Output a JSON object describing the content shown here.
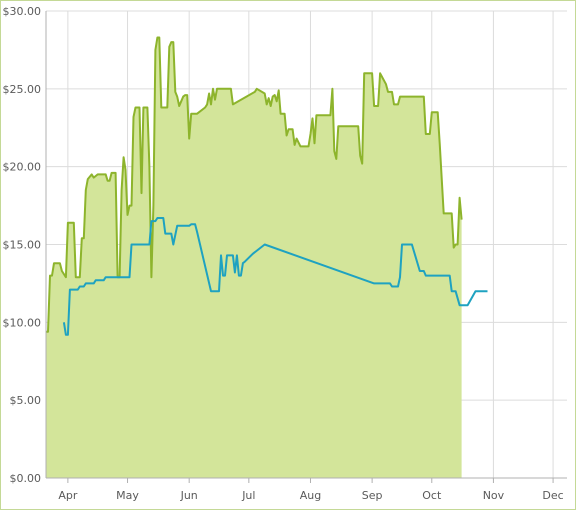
{
  "chart_data": {
    "type": "area",
    "y_tick_labels": [
      "$0.00",
      "$5.00",
      "$10.00",
      "$15.00",
      "$20.00",
      "$25.00",
      "$30.00"
    ],
    "ylim": [
      0,
      30
    ],
    "x_tick_labels": [
      "Apr",
      "May",
      "Jun",
      "Jul",
      "Aug",
      "Sep",
      "Oct",
      "Nov",
      "Dec"
    ],
    "x_tick_days": [
      91,
      121,
      152,
      182,
      213,
      244,
      274,
      305,
      335
    ],
    "xlim": [
      80,
      342
    ],
    "grid": true,
    "legend": "none",
    "series": [
      {
        "style": "area",
        "line_color": "#8db42c",
        "fill_color": "#d3e59a",
        "points": [
          [
            80,
            9.4
          ],
          [
            81,
            9.4
          ],
          [
            82,
            13.0
          ],
          [
            83,
            13.0
          ],
          [
            84,
            13.8
          ],
          [
            87,
            13.8
          ],
          [
            88,
            13.3
          ],
          [
            90,
            12.9
          ],
          [
            91,
            16.4
          ],
          [
            94,
            16.4
          ],
          [
            95,
            12.9
          ],
          [
            97,
            12.9
          ],
          [
            98,
            15.4
          ],
          [
            99,
            15.4
          ],
          [
            100,
            18.5
          ],
          [
            101,
            19.2
          ],
          [
            103,
            19.5
          ],
          [
            104,
            19.3
          ],
          [
            106,
            19.5
          ],
          [
            110,
            19.5
          ],
          [
            111,
            19.1
          ],
          [
            112,
            19.1
          ],
          [
            113,
            19.6
          ],
          [
            115,
            19.6
          ],
          [
            116,
            12.9
          ],
          [
            117,
            12.9
          ],
          [
            118,
            18.5
          ],
          [
            119,
            20.6
          ],
          [
            120,
            19.8
          ],
          [
            121,
            16.9
          ],
          [
            122,
            17.5
          ],
          [
            123,
            17.5
          ],
          [
            124,
            23.2
          ],
          [
            125,
            23.8
          ],
          [
            127,
            23.8
          ],
          [
            128,
            18.3
          ],
          [
            129,
            23.8
          ],
          [
            131,
            23.8
          ],
          [
            132,
            20.0
          ],
          [
            133,
            12.9
          ],
          [
            134,
            17.5
          ],
          [
            135,
            27.5
          ],
          [
            136,
            28.3
          ],
          [
            137,
            28.3
          ],
          [
            138,
            23.8
          ],
          [
            141,
            23.8
          ],
          [
            142,
            27.7
          ],
          [
            143,
            28.0
          ],
          [
            144,
            28.0
          ],
          [
            145,
            24.8
          ],
          [
            146,
            24.5
          ],
          [
            147,
            23.9
          ],
          [
            148,
            24.2
          ],
          [
            149,
            24.5
          ],
          [
            150,
            24.6
          ],
          [
            151,
            24.6
          ],
          [
            152,
            21.8
          ],
          [
            153,
            23.4
          ],
          [
            156,
            23.4
          ],
          [
            160,
            23.8
          ],
          [
            161,
            24.0
          ],
          [
            162,
            24.7
          ],
          [
            163,
            24.0
          ],
          [
            164,
            25.0
          ],
          [
            165,
            24.3
          ],
          [
            166,
            25.0
          ],
          [
            173,
            25.0
          ],
          [
            174,
            24.0
          ],
          [
            185,
            24.8
          ],
          [
            186,
            25.0
          ],
          [
            190,
            24.7
          ],
          [
            191,
            24.0
          ],
          [
            192,
            24.4
          ],
          [
            193,
            23.9
          ],
          [
            194,
            24.5
          ],
          [
            195,
            24.6
          ],
          [
            196,
            24.2
          ],
          [
            197,
            24.9
          ],
          [
            198,
            23.4
          ],
          [
            200,
            23.4
          ],
          [
            201,
            22.0
          ],
          [
            202,
            22.4
          ],
          [
            204,
            22.4
          ],
          [
            205,
            21.4
          ],
          [
            206,
            21.8
          ],
          [
            208,
            21.3
          ],
          [
            212,
            21.3
          ],
          [
            213,
            22.1
          ],
          [
            214,
            23.1
          ],
          [
            215,
            21.5
          ],
          [
            216,
            23.3
          ],
          [
            223,
            23.3
          ],
          [
            224,
            25.0
          ],
          [
            225,
            21.0
          ],
          [
            226,
            20.5
          ],
          [
            227,
            22.6
          ],
          [
            230,
            22.6
          ],
          [
            237,
            22.6
          ],
          [
            238,
            20.7
          ],
          [
            239,
            20.2
          ],
          [
            240,
            26.0
          ],
          [
            244,
            26.0
          ],
          [
            245,
            23.9
          ],
          [
            247,
            23.9
          ],
          [
            248,
            26.0
          ],
          [
            251,
            25.3
          ],
          [
            252,
            24.8
          ],
          [
            254,
            24.8
          ],
          [
            255,
            24.0
          ],
          [
            257,
            24.0
          ],
          [
            258,
            24.5
          ],
          [
            270,
            24.5
          ],
          [
            271,
            22.1
          ],
          [
            273,
            22.1
          ],
          [
            274,
            23.5
          ],
          [
            277,
            23.5
          ],
          [
            278,
            21.5
          ],
          [
            280,
            17.0
          ],
          [
            284,
            17.0
          ],
          [
            285,
            14.8
          ],
          [
            286,
            15.0
          ],
          [
            287,
            15.0
          ],
          [
            288,
            18.0
          ],
          [
            289,
            16.6
          ]
        ]
      },
      {
        "style": "line",
        "line_color": "#1ea2c1",
        "points": [
          [
            89,
            10.0
          ],
          [
            90,
            9.2
          ],
          [
            91,
            9.2
          ],
          [
            92,
            12.1
          ],
          [
            96,
            12.1
          ],
          [
            97,
            12.3
          ],
          [
            99,
            12.3
          ],
          [
            100,
            12.5
          ],
          [
            104,
            12.5
          ],
          [
            105,
            12.7
          ],
          [
            109,
            12.7
          ],
          [
            110,
            12.9
          ],
          [
            117,
            12.9
          ],
          [
            118,
            12.9
          ],
          [
            122,
            12.9
          ],
          [
            123,
            15.0
          ],
          [
            132,
            15.0
          ],
          [
            133,
            16.5
          ],
          [
            135,
            16.5
          ],
          [
            136,
            16.7
          ],
          [
            139,
            16.7
          ],
          [
            140,
            15.7
          ],
          [
            143,
            15.7
          ],
          [
            144,
            15.0
          ],
          [
            146,
            16.2
          ],
          [
            152,
            16.2
          ],
          [
            153,
            16.3
          ],
          [
            155,
            16.3
          ],
          [
            156,
            15.8
          ],
          [
            163,
            12.0
          ],
          [
            167,
            12.0
          ],
          [
            168,
            14.3
          ],
          [
            169,
            13.0
          ],
          [
            170,
            13.0
          ],
          [
            171,
            14.3
          ],
          [
            174,
            14.3
          ],
          [
            175,
            13.2
          ],
          [
            176,
            14.3
          ],
          [
            177,
            13.0
          ],
          [
            178,
            13.0
          ],
          [
            179,
            13.8
          ],
          [
            180,
            13.9
          ],
          [
            184,
            14.4
          ],
          [
            190,
            15.0
          ],
          [
            245,
            12.5
          ],
          [
            253,
            12.5
          ],
          [
            254,
            12.3
          ],
          [
            257,
            12.3
          ],
          [
            258,
            12.9
          ],
          [
            259,
            15.0
          ],
          [
            264,
            15.0
          ],
          [
            268,
            13.3
          ],
          [
            270,
            13.3
          ],
          [
            271,
            13.0
          ],
          [
            283,
            13.0
          ],
          [
            284,
            12.0
          ],
          [
            286,
            12.0
          ],
          [
            288,
            11.1
          ],
          [
            292,
            11.1
          ],
          [
            296,
            12.0
          ],
          [
            302,
            12.0
          ]
        ]
      }
    ]
  }
}
